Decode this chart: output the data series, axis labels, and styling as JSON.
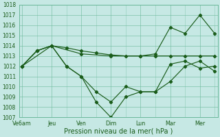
{
  "xlabel": "Pression niveau de la mer( hPa )",
  "background_color": "#c6e8e4",
  "grid_color": "#6ab89a",
  "line_color": "#1a5c1a",
  "ylim": [
    1007,
    1018
  ],
  "yticks": [
    1007,
    1008,
    1009,
    1010,
    1011,
    1012,
    1013,
    1014,
    1015,
    1016,
    1017,
    1018
  ],
  "xtick_labels": [
    "Ve6am",
    "Jeu",
    "Ven",
    "Dim",
    "Lun",
    "Mar",
    "Mer"
  ],
  "xtick_positions": [
    0,
    2,
    4,
    6,
    8,
    10,
    12
  ],
  "xlim": [
    -0.2,
    13.2
  ],
  "s1x": [
    0,
    1,
    2,
    3,
    4,
    5,
    6,
    7,
    8,
    9,
    10,
    11,
    12,
    13
  ],
  "s1y": [
    1012,
    1013.5,
    1014,
    1013.8,
    1013.5,
    1013.3,
    1013.1,
    1013.0,
    1013.0,
    1013.0,
    1013.0,
    1013.0,
    1013.0,
    1013.0
  ],
  "s2x": [
    0,
    1,
    2,
    3,
    4,
    5,
    6,
    7,
    8,
    9,
    10,
    11,
    12,
    13
  ],
  "s2y": [
    1012,
    1013.5,
    1014,
    1012,
    1011,
    1009.5,
    1008.5,
    1010.0,
    1009.5,
    1009.5,
    1010.5,
    1012.0,
    1012.5,
    1011.5
  ],
  "s3x": [
    0,
    1,
    2,
    3,
    4,
    5,
    6,
    7,
    8,
    9,
    10,
    11,
    12,
    13
  ],
  "s3y": [
    1012,
    1013.5,
    1014,
    1012,
    1011,
    1008.5,
    1007,
    1009.0,
    1009.5,
    1009.5,
    1012.2,
    1012.5,
    1011.8,
    1012.0
  ],
  "s4x": [
    0,
    2,
    4,
    6,
    8,
    9,
    10,
    11,
    12,
    13
  ],
  "s4y": [
    1012,
    1014,
    1013.2,
    1013.0,
    1013.0,
    1013.2,
    1015.8,
    1015.2,
    1017.0,
    1015.2
  ]
}
